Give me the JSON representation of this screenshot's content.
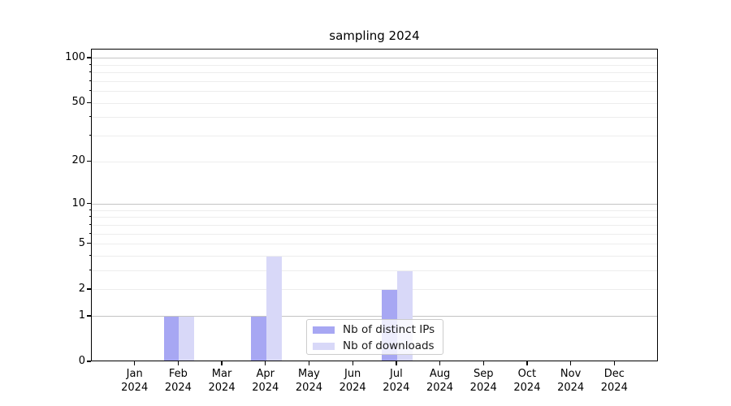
{
  "chart_data": {
    "type": "bar",
    "title": "sampling 2024",
    "categories": [
      {
        "month": "Jan",
        "year": "2024"
      },
      {
        "month": "Feb",
        "year": "2024"
      },
      {
        "month": "Mar",
        "year": "2024"
      },
      {
        "month": "Apr",
        "year": "2024"
      },
      {
        "month": "May",
        "year": "2024"
      },
      {
        "month": "Jun",
        "year": "2024"
      },
      {
        "month": "Jul",
        "year": "2024"
      },
      {
        "month": "Aug",
        "year": "2024"
      },
      {
        "month": "Sep",
        "year": "2024"
      },
      {
        "month": "Oct",
        "year": "2024"
      },
      {
        "month": "Nov",
        "year": "2024"
      },
      {
        "month": "Dec",
        "year": "2024"
      }
    ],
    "series": [
      {
        "name": "Nb of distinct IPs",
        "color": "#a7a7f3",
        "values": [
          0,
          1,
          0,
          1,
          0,
          0,
          2,
          0,
          0,
          0,
          0,
          0
        ]
      },
      {
        "name": "Nb of downloads",
        "color": "#d8d8f8",
        "values": [
          0,
          1,
          0,
          4,
          0,
          0,
          3,
          0,
          0,
          0,
          0,
          0
        ]
      }
    ],
    "xlabel": "",
    "ylabel": "",
    "y_axis": {
      "scale": "log1p",
      "tick_values": [
        0,
        1,
        2,
        5,
        10,
        20,
        50,
        100
      ],
      "major_gridlines": [
        1,
        10,
        100
      ],
      "minor_gridlines": [
        2,
        3,
        4,
        5,
        6,
        7,
        8,
        9,
        20,
        30,
        40,
        50,
        60,
        70,
        80,
        90
      ],
      "ylim": [
        0,
        115
      ]
    },
    "grid": "horizontal",
    "legend_position": "inside lower-center"
  },
  "colors": {
    "axis": "#000000",
    "major_grid": "#c4c4c4",
    "minor_grid": "#ededed",
    "legend_border": "#cccccc"
  }
}
